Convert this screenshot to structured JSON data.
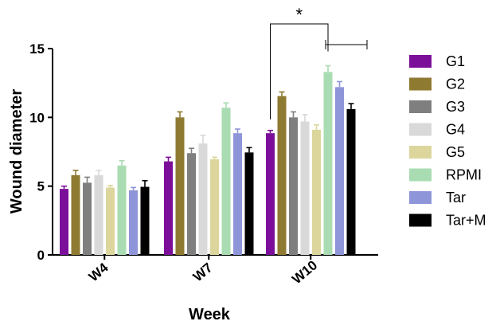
{
  "chart_data": {
    "type": "bar",
    "xlabel": "Week",
    "ylabel": "Wound diameter",
    "ylim": [
      0,
      15
    ],
    "yticks": [
      "0",
      "5",
      "10",
      "15"
    ],
    "categories": [
      "W4",
      "W7",
      "W10"
    ],
    "series": [
      {
        "name": "G1",
        "color": "#7b0f99",
        "values": [
          4.8,
          6.8,
          8.85
        ],
        "errors": [
          0.2,
          0.3,
          0.2
        ]
      },
      {
        "name": "G2",
        "color": "#8f7a32",
        "values": [
          5.8,
          10.0,
          11.55
        ],
        "errors": [
          0.35,
          0.4,
          0.3
        ]
      },
      {
        "name": "G3",
        "color": "#7f7f7f",
        "values": [
          5.25,
          7.4,
          10.0
        ],
        "errors": [
          0.4,
          0.35,
          0.4
        ]
      },
      {
        "name": "G4",
        "color": "#d9d9d9",
        "values": [
          5.8,
          8.1,
          9.7
        ],
        "errors": [
          0.35,
          0.6,
          0.5
        ]
      },
      {
        "name": "G5",
        "color": "#dcd69c",
        "values": [
          4.9,
          6.95,
          9.1
        ],
        "errors": [
          0.15,
          0.15,
          0.35
        ]
      },
      {
        "name": "RPMI",
        "color": "#a9dcb2",
        "values": [
          6.5,
          10.7,
          13.3
        ],
        "errors": [
          0.35,
          0.35,
          0.45
        ]
      },
      {
        "name": "Tar",
        "color": "#8e95d8",
        "values": [
          4.7,
          8.85,
          12.2
        ],
        "errors": [
          0.2,
          0.3,
          0.4
        ]
      },
      {
        "name": "Tar+M",
        "color": "#000000",
        "values": [
          4.95,
          7.45,
          10.6
        ],
        "errors": [
          0.45,
          0.35,
          0.4
        ]
      }
    ],
    "annotation": {
      "text": "*"
    },
    "grid": false,
    "legend_position": "right"
  }
}
